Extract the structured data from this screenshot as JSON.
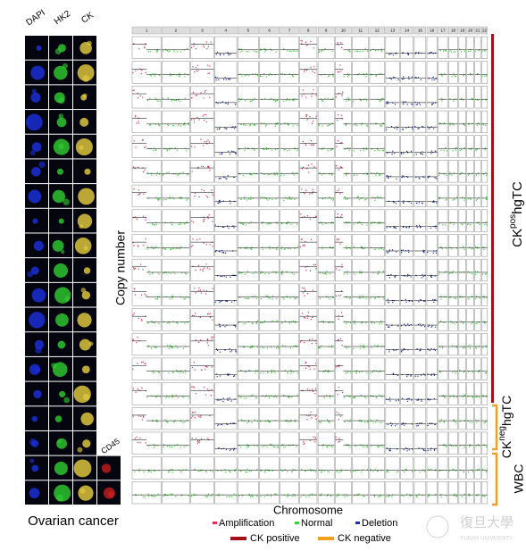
{
  "panel_a": {
    "channels": [
      "DAPI",
      "HK2",
      "CK"
    ],
    "extra_channel": "CD45",
    "caption": "Ovarian cancer"
  },
  "panel_b": {
    "y_label": "Copy number",
    "x_label": "Chromosome",
    "chromosomes": [
      "1",
      "2",
      "3",
      "4",
      "5",
      "6",
      "7",
      "8",
      "9",
      "10",
      "11",
      "12",
      "13",
      "14",
      "15",
      "16",
      "17",
      "18",
      "19",
      "20",
      "21",
      "22"
    ],
    "legend": [
      "Amplification",
      "Normal",
      "Deletion"
    ],
    "groups": [
      {
        "prefix": "CK",
        "sup": "pos",
        "suffix": "hgTC"
      },
      {
        "prefix": "CK",
        "sup": "neg",
        "suffix": "hgTC"
      },
      {
        "prefix": "WBC"
      }
    ],
    "group_legend": [
      "CK positive",
      "CK negative"
    ]
  },
  "watermark": {
    "cn": "復旦大學",
    "en": "FUDAN UNIVERSITY"
  }
}
